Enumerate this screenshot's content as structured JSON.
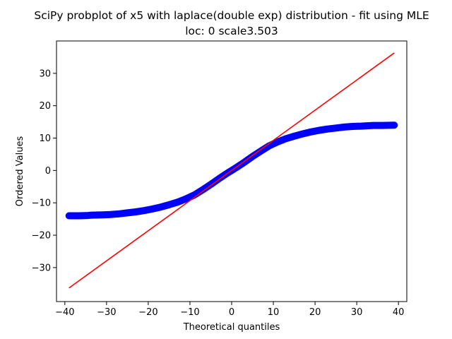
{
  "chart_data": {
    "type": "scatter",
    "title": "SciPy probplot of x5 with laplace(double exp) distribution - fit using MLE",
    "subtitle": "loc: 0 scale3.503",
    "xlabel": "Theoretical quantiles",
    "ylabel": "Ordered Values",
    "xlim": [
      -42,
      42
    ],
    "ylim": [
      -40.5,
      40
    ],
    "xticks": [
      -40,
      -30,
      -20,
      -10,
      0,
      10,
      20,
      30,
      40
    ],
    "yticks": [
      -30,
      -20,
      -10,
      0,
      10,
      20,
      30
    ],
    "grid": false,
    "series": [
      {
        "kind": "markers",
        "color": "#0000ff",
        "points": [
          [
            -39.0,
            -14.0
          ],
          [
            -36.5,
            -14.0
          ],
          [
            -34.5,
            -13.9
          ],
          [
            -33.5,
            -13.8
          ],
          [
            -31.0,
            -13.7
          ],
          [
            -29.0,
            -13.6
          ],
          [
            -27.0,
            -13.4
          ],
          [
            -25.0,
            -13.1
          ],
          [
            -23.0,
            -12.8
          ],
          [
            -21.0,
            -12.4
          ],
          [
            -19.0,
            -11.9
          ],
          [
            -17.0,
            -11.3
          ],
          [
            -15.0,
            -10.6
          ],
          [
            -13.0,
            -9.8
          ],
          [
            -11.0,
            -8.8
          ],
          [
            -9.0,
            -7.6
          ],
          [
            -7.0,
            -6.0
          ],
          [
            -5.0,
            -4.3
          ],
          [
            -3.0,
            -2.5
          ],
          [
            -1.0,
            -0.8
          ],
          [
            0.0,
            0.0
          ],
          [
            1.0,
            0.8
          ],
          [
            3.0,
            2.5
          ],
          [
            5.0,
            4.3
          ],
          [
            7.0,
            6.0
          ],
          [
            9.0,
            7.6
          ],
          [
            11.0,
            8.8
          ],
          [
            13.0,
            9.8
          ],
          [
            15.0,
            10.6
          ],
          [
            17.0,
            11.3
          ],
          [
            19.0,
            11.9
          ],
          [
            21.0,
            12.4
          ],
          [
            23.0,
            12.8
          ],
          [
            25.0,
            13.1
          ],
          [
            27.0,
            13.4
          ],
          [
            29.0,
            13.6
          ],
          [
            31.0,
            13.7
          ],
          [
            32.5,
            13.8
          ],
          [
            34.0,
            13.9
          ],
          [
            36.0,
            13.9
          ],
          [
            39.0,
            14.0
          ]
        ]
      },
      {
        "kind": "line",
        "color": "#ff0000",
        "points": [
          [
            -39.0,
            -36.3
          ],
          [
            39.0,
            36.3
          ]
        ]
      }
    ]
  }
}
